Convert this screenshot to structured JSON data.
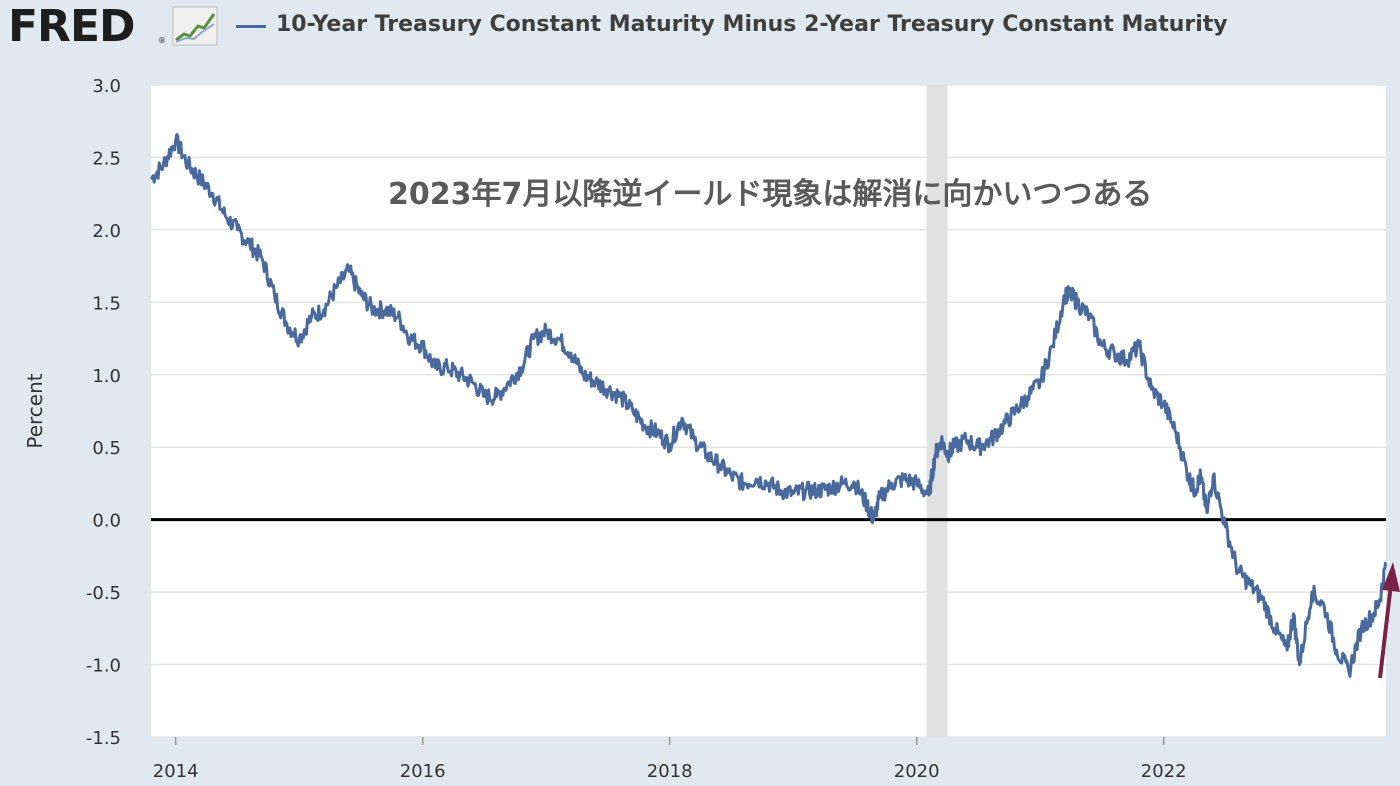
{
  "header": {
    "logo_text": "FRED",
    "logo_reg": "®",
    "series_title": "10-Year Treasury Constant Maturity Minus 2-Year Treasury Constant Maturity"
  },
  "colors": {
    "background": "#e1e9f0",
    "plot_background": "#ffffff",
    "series_line": "#4a6a9e",
    "zero_line": "#000000",
    "recession_band": "#e1e1e1",
    "arrow": "#7a2445",
    "gridline": "#e5e5e5"
  },
  "chart_data": {
    "type": "line",
    "title": "10-Year Treasury Constant Maturity Minus 2-Year Treasury Constant Maturity",
    "ylabel": "Percent",
    "xlabel": "",
    "xlim": [
      2013.8,
      2023.8
    ],
    "ylim": [
      -1.5,
      3.0
    ],
    "yticks": [
      "3.0",
      "2.5",
      "2.0",
      "1.5",
      "1.0",
      "0.5",
      "0.0",
      "-0.5",
      "-1.0",
      "-1.5"
    ],
    "ytick_values": [
      3.0,
      2.5,
      2.0,
      1.5,
      1.0,
      0.5,
      0.0,
      -0.5,
      -1.0,
      -1.5
    ],
    "xticks": [
      "2014",
      "2016",
      "2018",
      "2020",
      "2022"
    ],
    "xtick_values": [
      2014,
      2016,
      2018,
      2020,
      2022
    ],
    "grid": true,
    "recession": {
      "start": 2020.08,
      "end": 2020.25
    },
    "reference_line": 0.0,
    "annotation_text": "2023年7月以降逆イールド現象は解消に向かいつつある",
    "series": [
      {
        "name": "10-Year Treasury Constant Maturity Minus 2-Year Treasury Constant Maturity",
        "x": [
          2013.8,
          2013.9,
          2014.0,
          2014.1,
          2014.2,
          2014.3,
          2014.4,
          2014.5,
          2014.6,
          2014.7,
          2014.8,
          2014.9,
          2015.0,
          2015.1,
          2015.2,
          2015.3,
          2015.4,
          2015.5,
          2015.6,
          2015.7,
          2015.8,
          2015.9,
          2016.0,
          2016.1,
          2016.2,
          2016.3,
          2016.4,
          2016.5,
          2016.6,
          2016.7,
          2016.8,
          2016.9,
          2017.0,
          2017.1,
          2017.2,
          2017.3,
          2017.4,
          2017.5,
          2017.6,
          2017.7,
          2017.8,
          2017.9,
          2018.0,
          2018.1,
          2018.2,
          2018.3,
          2018.4,
          2018.5,
          2018.6,
          2018.7,
          2018.8,
          2018.9,
          2019.0,
          2019.1,
          2019.2,
          2019.3,
          2019.4,
          2019.5,
          2019.6,
          2019.65,
          2019.7,
          2019.8,
          2019.9,
          2020.0,
          2020.1,
          2020.15,
          2020.2,
          2020.25,
          2020.3,
          2020.4,
          2020.5,
          2020.6,
          2020.7,
          2020.8,
          2020.9,
          2021.0,
          2021.1,
          2021.2,
          2021.25,
          2021.3,
          2021.4,
          2021.5,
          2021.6,
          2021.7,
          2021.8,
          2021.9,
          2022.0,
          2022.1,
          2022.2,
          2022.25,
          2022.3,
          2022.35,
          2022.4,
          2022.5,
          2022.6,
          2022.7,
          2022.8,
          2022.9,
          2023.0,
          2023.05,
          2023.1,
          2023.2,
          2023.3,
          2023.4,
          2023.5,
          2023.6,
          2023.7,
          2023.75,
          2023.8
        ],
        "y": [
          2.35,
          2.45,
          2.62,
          2.45,
          2.35,
          2.25,
          2.1,
          2.0,
          1.9,
          1.8,
          1.55,
          1.35,
          1.25,
          1.4,
          1.45,
          1.6,
          1.72,
          1.55,
          1.45,
          1.45,
          1.4,
          1.25,
          1.2,
          1.05,
          1.05,
          1.0,
          0.95,
          0.85,
          0.85,
          0.95,
          1.05,
          1.25,
          1.3,
          1.25,
          1.15,
          1.0,
          0.95,
          0.9,
          0.85,
          0.75,
          0.65,
          0.6,
          0.52,
          0.7,
          0.55,
          0.45,
          0.38,
          0.3,
          0.25,
          0.28,
          0.25,
          0.2,
          0.18,
          0.2,
          0.2,
          0.22,
          0.25,
          0.25,
          0.1,
          0.0,
          0.15,
          0.25,
          0.28,
          0.25,
          0.17,
          0.45,
          0.55,
          0.45,
          0.5,
          0.55,
          0.5,
          0.55,
          0.65,
          0.75,
          0.85,
          0.95,
          1.2,
          1.55,
          1.55,
          1.5,
          1.4,
          1.2,
          1.15,
          1.1,
          1.2,
          0.9,
          0.8,
          0.6,
          0.3,
          0.2,
          0.3,
          0.05,
          0.3,
          -0.05,
          -0.35,
          -0.45,
          -0.55,
          -0.75,
          -0.9,
          -0.65,
          -1.0,
          -0.5,
          -0.6,
          -0.9,
          -1.05,
          -0.75,
          -0.65,
          -0.55,
          -0.3
        ]
      }
    ]
  }
}
